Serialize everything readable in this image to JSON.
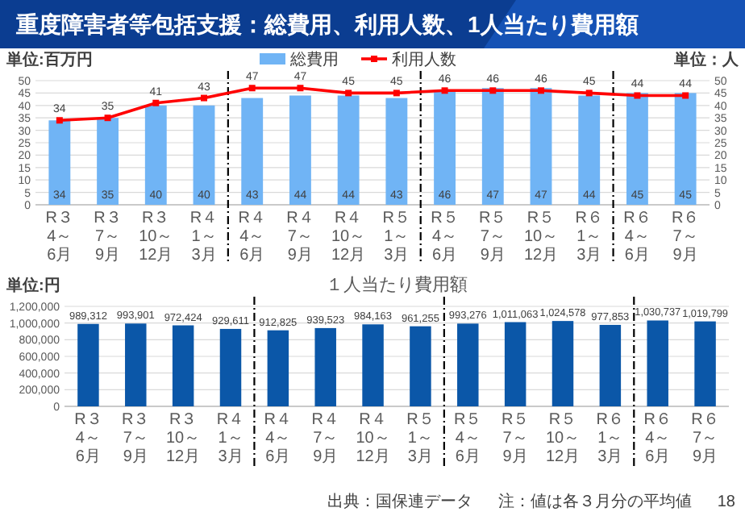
{
  "chart_data": [
    {
      "type": "bar",
      "title": "重度障害者等包括支援：総費用、利用人数、1人当たり費用額",
      "ylabel": "単位:百万円",
      "y2label": "単位：人",
      "categories": [
        "R３\n4～6月",
        "R３\n7～9月",
        "R３\n10～12月",
        "R４\n1～3月",
        "R４\n4～6月",
        "R４\n7～9月",
        "R４\n10～12月",
        "R５\n1～3月",
        "R５\n4～6月",
        "R５\n7～9月",
        "R５\n10～12月",
        "R６\n1～3月",
        "R６\n4～6月",
        "R６\n7～9月"
      ],
      "series": [
        {
          "name": "総費用",
          "type": "bar",
          "color": "#70b4f5",
          "values": [
            34,
            35,
            40,
            40,
            43,
            44,
            44,
            43,
            46,
            47,
            47,
            44,
            45,
            45
          ]
        },
        {
          "name": "利用人数",
          "type": "line",
          "axis": "y2",
          "color": "#ff0000",
          "values": [
            34,
            35,
            41,
            43,
            47,
            47,
            45,
            45,
            46,
            46,
            46,
            45,
            44,
            44
          ]
        }
      ],
      "ylim": [
        0,
        50
      ],
      "yticks": [
        0,
        5,
        10,
        15,
        20,
        25,
        30,
        35,
        40,
        45,
        50
      ],
      "y2lim": [
        0,
        50
      ],
      "y2ticks": [
        0,
        5,
        10,
        15,
        20,
        25,
        30,
        35,
        40,
        45,
        50
      ],
      "data_labels": true,
      "grid": "y",
      "legend": "top",
      "marker": "square"
    },
    {
      "type": "bar",
      "title": "１人当たり費用額",
      "ylabel": "単位:円",
      "categories": [
        "R３\n4～6月",
        "R３\n7～9月",
        "R３\n10～12月",
        "R４\n1～3月",
        "R４\n4～6月",
        "R４\n7～9月",
        "R４\n10～12月",
        "R５\n1～3月",
        "R５\n4～6月",
        "R５\n7～9月",
        "R５\n10～12月",
        "R６\n1～3月",
        "R６\n4～6月",
        "R６\n7～9月"
      ],
      "values": [
        989312,
        993901,
        972424,
        929611,
        912825,
        939523,
        984163,
        961255,
        993276,
        1011063,
        1024578,
        977853,
        1030737,
        1019799
      ],
      "value_labels": [
        "989,312",
        "993,901",
        "972,424",
        "929,611",
        "912,825",
        "939,523",
        "984,163",
        "961,255",
        "993,276",
        "1,011,063",
        "1,024,578",
        "977,853",
        "1,030,737",
        "1,019,799"
      ],
      "color": "#0b57a8",
      "ylim": [
        0,
        1200000
      ],
      "yticks": [
        {
          "value": 0,
          "label": "0"
        },
        {
          "value": 200000,
          "label": "200,000"
        },
        {
          "value": 400000,
          "label": "400,000"
        },
        {
          "value": 600000,
          "label": "600,000"
        },
        {
          "value": 800000,
          "label": "800,000"
        },
        {
          "value": 1000000,
          "label": "1,000,000"
        },
        {
          "value": 1200000,
          "label": "1,200,000"
        }
      ],
      "grid": "y",
      "annotations": [
        "出典：国保連データ",
        "注：値は各３月分の平均値",
        "18"
      ]
    }
  ]
}
